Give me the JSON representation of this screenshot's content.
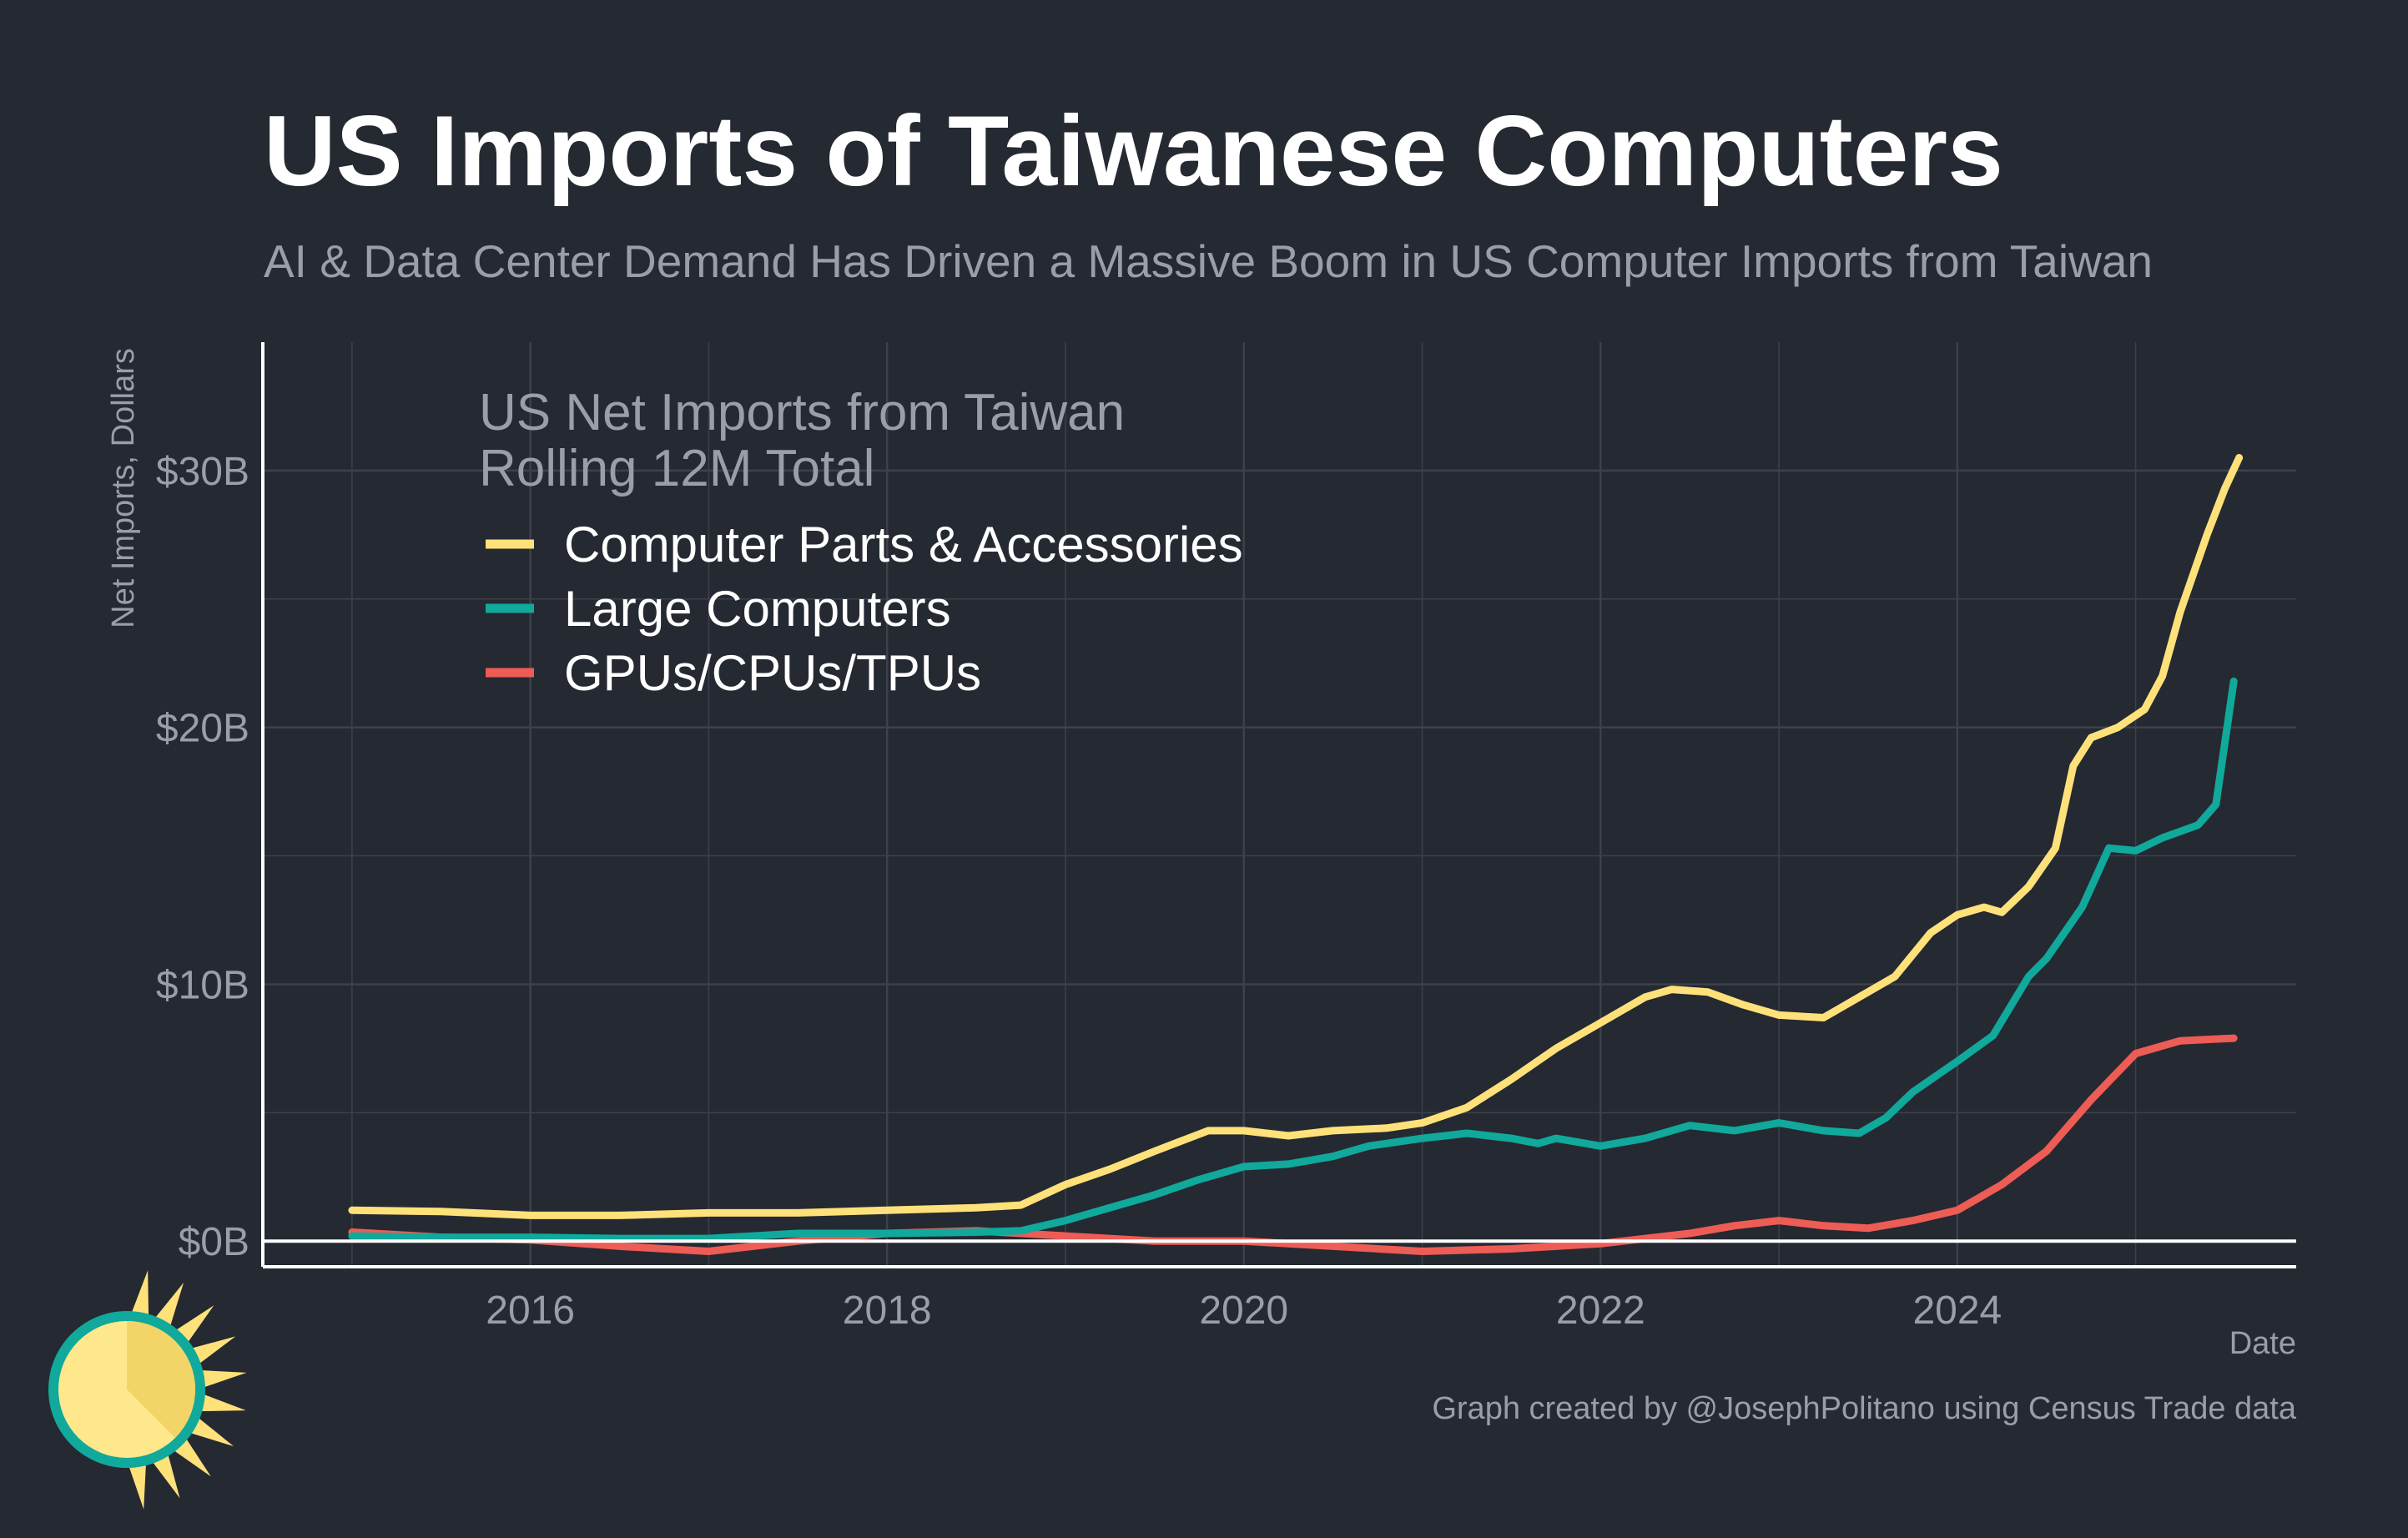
{
  "title": "US Imports of Taiwanese Computers",
  "subtitle": "AI & Data Center Demand Has Driven a Massive Boom in US Computer Imports from Taiwan",
  "caption": "Graph created by @JosephPolitano using Census Trade data",
  "colors": {
    "background": "#252932",
    "grid": "#3c414b",
    "axis": "#ffffff",
    "text_muted": "#9a9ea6"
  },
  "logo": {
    "icon": "sun-icon"
  },
  "chart_data": {
    "type": "line",
    "title": "US Imports of Taiwanese Computers",
    "subtitle": "AI & Data Center Demand Has Driven a Massive Boom in US Computer Imports from Taiwan",
    "xlabel": "Date",
    "ylabel": "Net Imports, Dollars",
    "xlim": [
      2014.5,
      2025.9
    ],
    "ylim": [
      -1.0,
      35.0
    ],
    "x_ticks": [
      2016,
      2018,
      2020,
      2022,
      2024
    ],
    "x_tick_labels": [
      "2016",
      "2018",
      "2020",
      "2022",
      "2024"
    ],
    "y_ticks": [
      0,
      10,
      20,
      30
    ],
    "y_tick_labels": [
      "$0B",
      "$10B",
      "$20B",
      "$30B"
    ],
    "grid": true,
    "legend_position": "top-left",
    "legend_title": [
      "US Net Imports from Taiwan",
      "Rolling 12M Total"
    ],
    "series": [
      {
        "name": "Computer Parts & Accessories",
        "color": "#ffe17a",
        "points": [
          [
            2015.0,
            1.2
          ],
          [
            2015.5,
            1.15
          ],
          [
            2016.0,
            1.0
          ],
          [
            2016.5,
            1.0
          ],
          [
            2017.0,
            1.1
          ],
          [
            2017.5,
            1.1
          ],
          [
            2018.0,
            1.2
          ],
          [
            2018.5,
            1.3
          ],
          [
            2018.75,
            1.4
          ],
          [
            2019.0,
            2.2
          ],
          [
            2019.25,
            2.8
          ],
          [
            2019.5,
            3.5
          ],
          [
            2019.8,
            4.3
          ],
          [
            2020.0,
            4.3
          ],
          [
            2020.25,
            4.1
          ],
          [
            2020.5,
            4.3
          ],
          [
            2020.8,
            4.4
          ],
          [
            2021.0,
            4.6
          ],
          [
            2021.25,
            5.2
          ],
          [
            2021.5,
            6.3
          ],
          [
            2021.75,
            7.5
          ],
          [
            2022.0,
            8.5
          ],
          [
            2022.25,
            9.5
          ],
          [
            2022.4,
            9.8
          ],
          [
            2022.6,
            9.7
          ],
          [
            2022.8,
            9.2
          ],
          [
            2023.0,
            8.8
          ],
          [
            2023.25,
            8.7
          ],
          [
            2023.5,
            9.7
          ],
          [
            2023.65,
            10.3
          ],
          [
            2023.85,
            12.0
          ],
          [
            2024.0,
            12.7
          ],
          [
            2024.15,
            13.0
          ],
          [
            2024.25,
            12.8
          ],
          [
            2024.4,
            13.8
          ],
          [
            2024.55,
            15.3
          ],
          [
            2024.65,
            18.5
          ],
          [
            2024.75,
            19.6
          ],
          [
            2024.9,
            20.0
          ],
          [
            2025.05,
            20.7
          ],
          [
            2025.15,
            22.0
          ],
          [
            2025.25,
            24.5
          ],
          [
            2025.4,
            27.5
          ],
          [
            2025.5,
            29.3
          ],
          [
            2025.58,
            30.5
          ]
        ]
      },
      {
        "name": "Large Computers",
        "color": "#10a99b",
        "points": [
          [
            2015.0,
            0.2
          ],
          [
            2015.5,
            0.15
          ],
          [
            2016.0,
            0.15
          ],
          [
            2016.5,
            0.1
          ],
          [
            2017.0,
            0.1
          ],
          [
            2017.5,
            0.3
          ],
          [
            2018.0,
            0.3
          ],
          [
            2018.5,
            0.35
          ],
          [
            2018.75,
            0.4
          ],
          [
            2019.0,
            0.8
          ],
          [
            2019.25,
            1.3
          ],
          [
            2019.5,
            1.8
          ],
          [
            2019.75,
            2.4
          ],
          [
            2020.0,
            2.9
          ],
          [
            2020.25,
            3.0
          ],
          [
            2020.5,
            3.3
          ],
          [
            2020.7,
            3.7
          ],
          [
            2021.0,
            4.0
          ],
          [
            2021.25,
            4.2
          ],
          [
            2021.5,
            4.0
          ],
          [
            2021.65,
            3.8
          ],
          [
            2021.75,
            4.0
          ],
          [
            2022.0,
            3.7
          ],
          [
            2022.25,
            4.0
          ],
          [
            2022.5,
            4.5
          ],
          [
            2022.75,
            4.3
          ],
          [
            2023.0,
            4.6
          ],
          [
            2023.25,
            4.3
          ],
          [
            2023.45,
            4.2
          ],
          [
            2023.6,
            4.8
          ],
          [
            2023.75,
            5.8
          ],
          [
            2024.0,
            7.0
          ],
          [
            2024.2,
            8.0
          ],
          [
            2024.4,
            10.3
          ],
          [
            2024.5,
            11.0
          ],
          [
            2024.7,
            13.0
          ],
          [
            2024.85,
            15.3
          ],
          [
            2025.0,
            15.2
          ],
          [
            2025.15,
            15.7
          ],
          [
            2025.35,
            16.2
          ],
          [
            2025.45,
            17.0
          ],
          [
            2025.55,
            21.8
          ]
        ]
      },
      {
        "name": "GPUs/CPUs/TPUs",
        "color": "#ed5c55",
        "points": [
          [
            2015.0,
            0.35
          ],
          [
            2015.5,
            0.15
          ],
          [
            2016.0,
            0.05
          ],
          [
            2016.5,
            -0.2
          ],
          [
            2017.0,
            -0.4
          ],
          [
            2017.5,
            0.0
          ],
          [
            2018.0,
            0.3
          ],
          [
            2018.5,
            0.4
          ],
          [
            2019.0,
            0.2
          ],
          [
            2019.5,
            0.0
          ],
          [
            2020.0,
            0.0
          ],
          [
            2020.5,
            -0.2
          ],
          [
            2021.0,
            -0.4
          ],
          [
            2021.5,
            -0.3
          ],
          [
            2022.0,
            -0.1
          ],
          [
            2022.5,
            0.3
          ],
          [
            2022.75,
            0.6
          ],
          [
            2023.0,
            0.8
          ],
          [
            2023.25,
            0.6
          ],
          [
            2023.5,
            0.5
          ],
          [
            2023.75,
            0.8
          ],
          [
            2024.0,
            1.2
          ],
          [
            2024.25,
            2.2
          ],
          [
            2024.5,
            3.5
          ],
          [
            2024.75,
            5.5
          ],
          [
            2025.0,
            7.3
          ],
          [
            2025.25,
            7.8
          ],
          [
            2025.55,
            7.9
          ]
        ]
      }
    ]
  }
}
